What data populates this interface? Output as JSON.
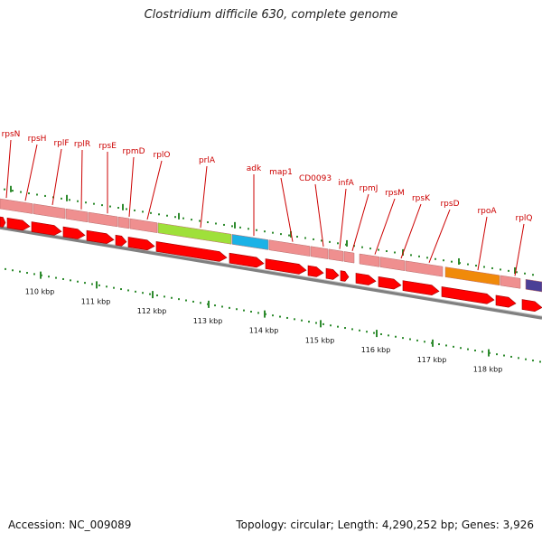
{
  "title": "Clostridium difficile 630, complete genome",
  "footer": {
    "accession": "Accession: NC_009089",
    "summary": "Topology: circular; Length: 4,290,252 bp; Genes: 3,926"
  },
  "colors": {
    "default_gene": "#ef8f8f",
    "gene_arrow": "#ff0000",
    "backbone": "#808080",
    "tick": "#2e8b2e",
    "label": "#cc0000"
  },
  "scale_labels": [
    "110 kbp",
    "111 kbp",
    "112 kbp",
    "113 kbp",
    "114 kbp",
    "115 kbp",
    "116 kbp",
    "117 kbp",
    "118 kbp"
  ],
  "gene_labels": [
    "rpsN",
    "rpsH",
    "rplF",
    "rplR",
    "rpsE",
    "rpmD",
    "rplO",
    "prlA",
    "adk",
    "map1",
    "CD0093",
    "infA",
    "rpmJ",
    "rpsM",
    "rpsK",
    "rpsD",
    "rpoA",
    "rplQ"
  ],
  "highlight_colors": {
    "prlA": "#9fe03a",
    "adk": "#1ab2e6",
    "rpoA": "#f08a0a",
    "rplQ_next": "#4b3f96"
  }
}
